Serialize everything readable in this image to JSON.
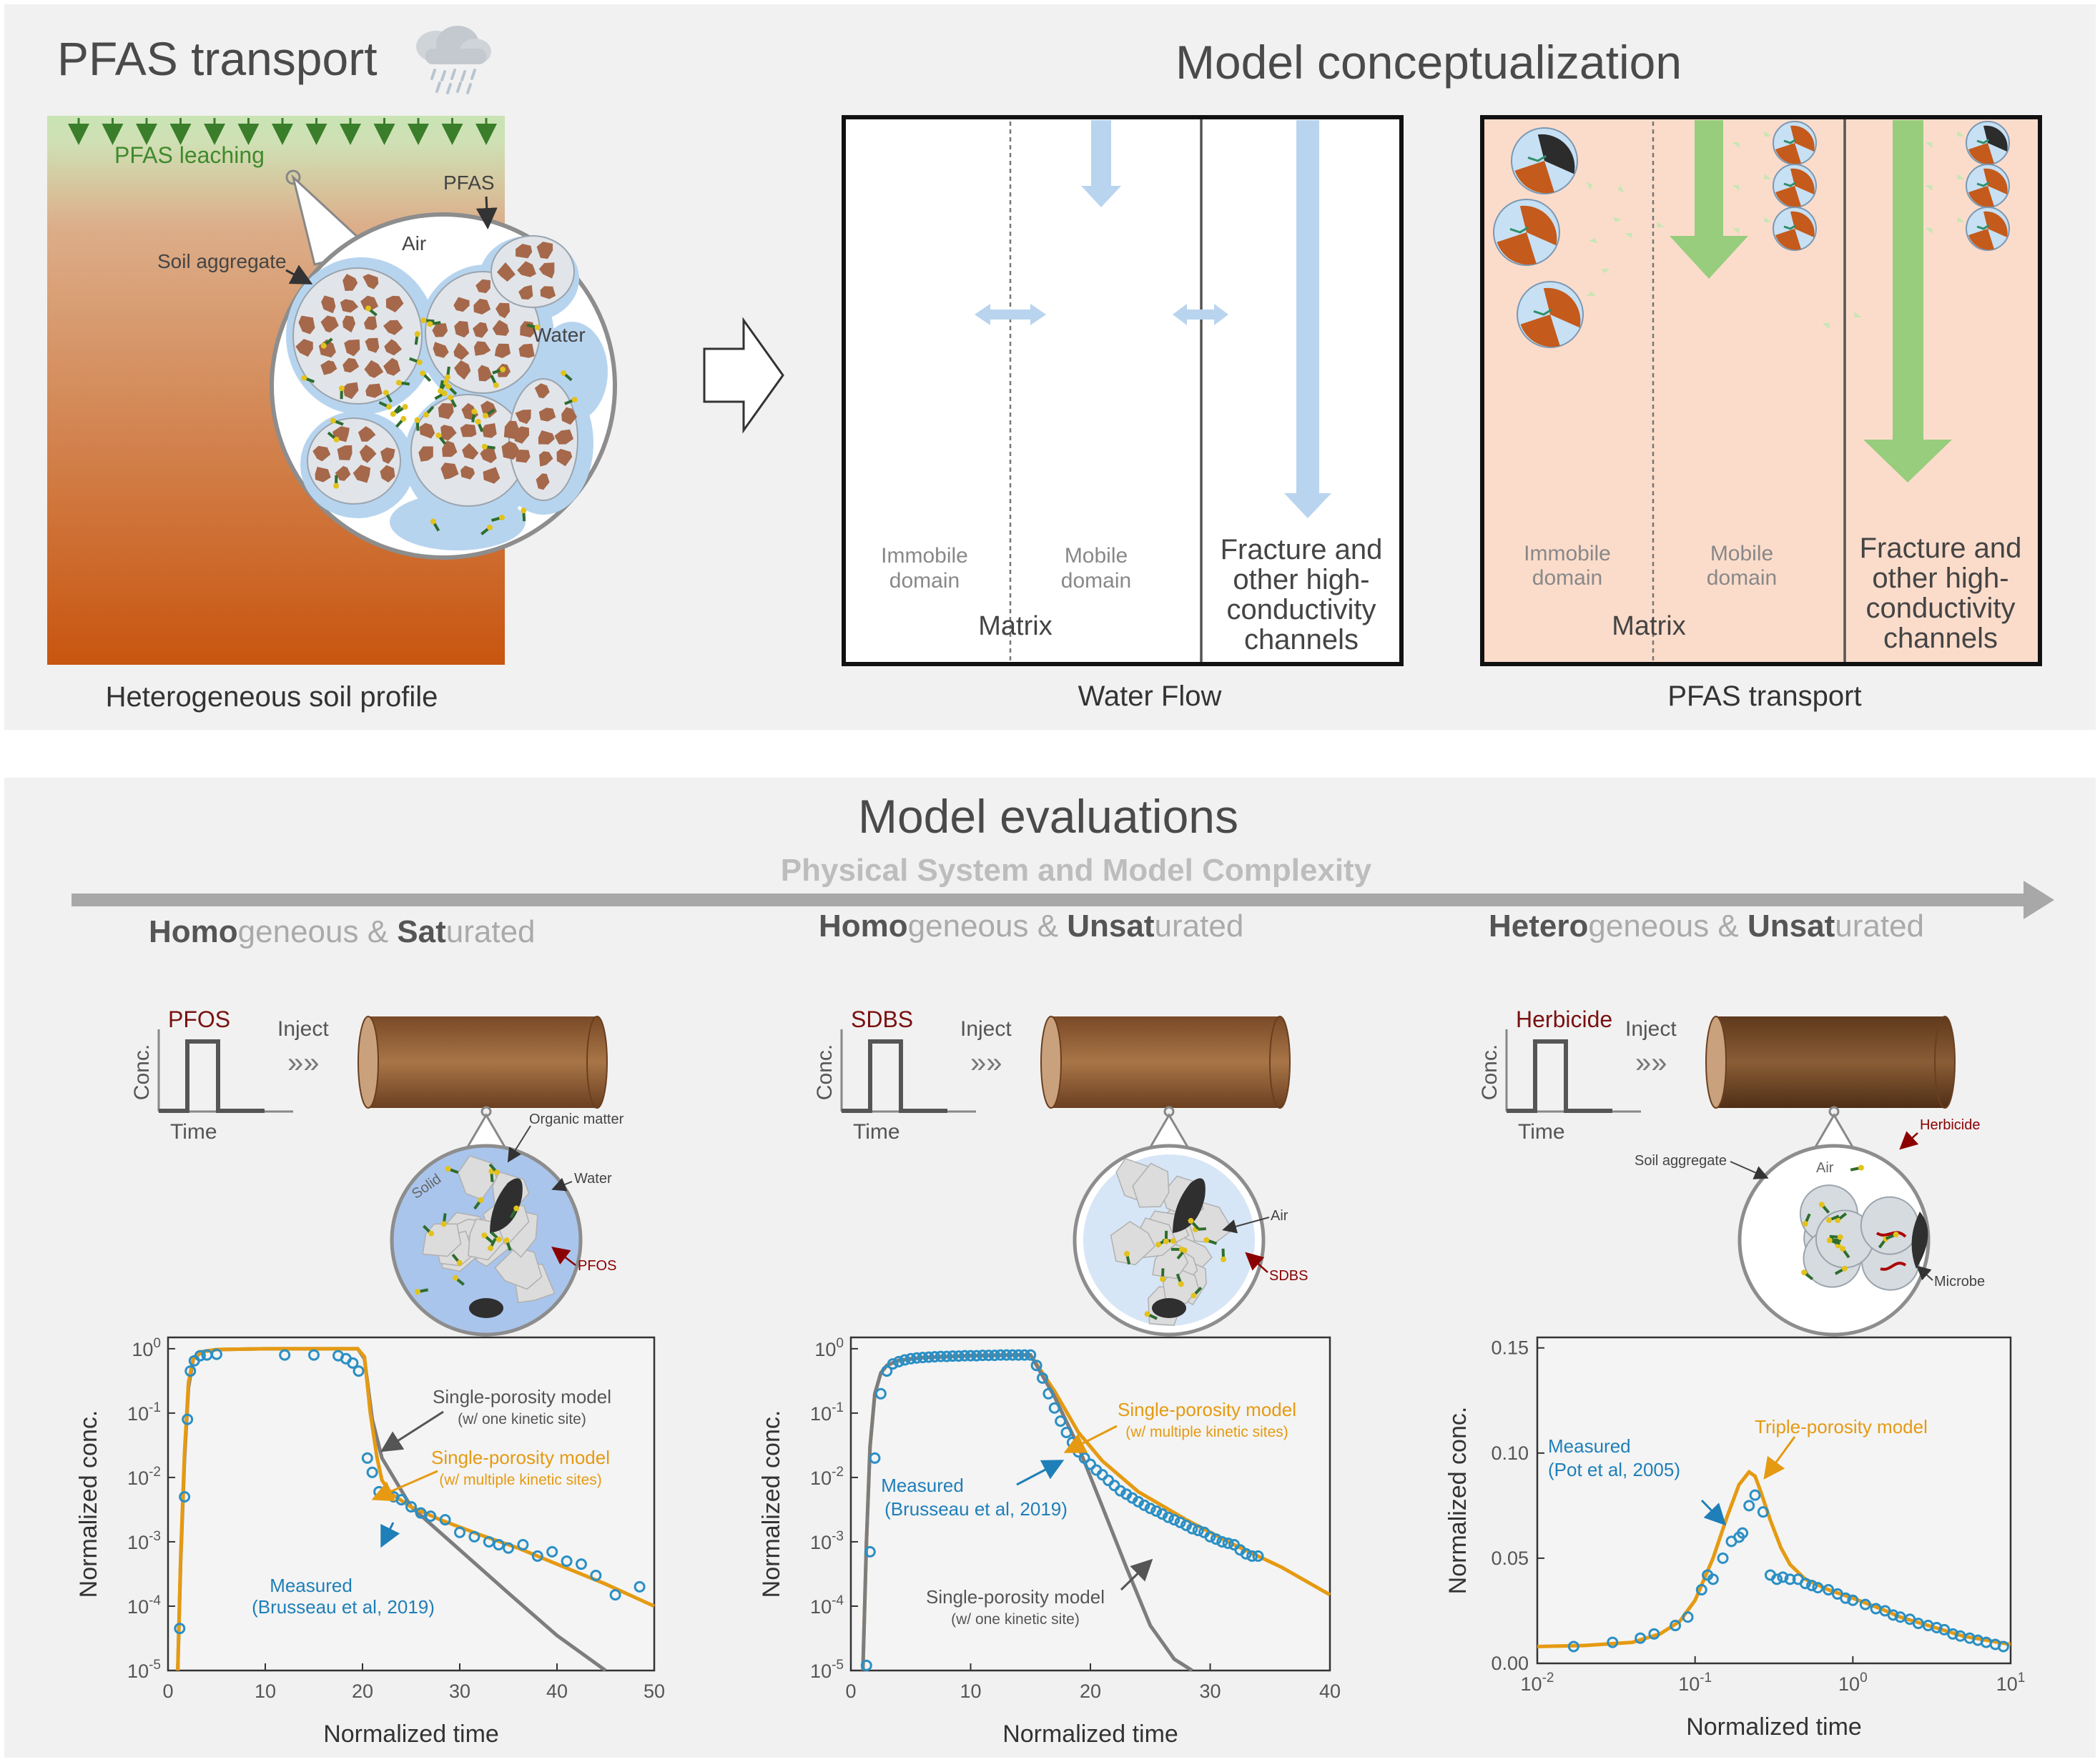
{
  "top": {
    "title": "PFAS transport",
    "model_title": "Model conceptualization",
    "soil_profile": {
      "leaching_label": "PFAS leaching",
      "pfas_label": "PFAS",
      "air_label": "Air",
      "water_label": "Water",
      "aggregate_label": "Soil aggregate",
      "caption": "Heterogeneous soil profile"
    },
    "water_flow_box": {
      "immobile": [
        "Immobile",
        "domain"
      ],
      "mobile": [
        "Mobile",
        "domain"
      ],
      "matrix": "Matrix",
      "fracture": [
        "Fracture and",
        "other high-",
        "conductivity",
        "channels"
      ],
      "caption": "Water Flow"
    },
    "pfas_box": {
      "immobile": [
        "Immobile",
        "domain"
      ],
      "mobile": [
        "Mobile",
        "domain"
      ],
      "matrix": "Matrix",
      "fracture": [
        "Fracture and",
        "other high-",
        "conductivity",
        "channels"
      ],
      "caption": "PFAS transport"
    },
    "colors": {
      "soil_top": "#d9a27a",
      "soil_bottom": "#c8550f",
      "green_band": "#c9e4b4",
      "water": "#b7d4ef",
      "aggregate": "#a5684a",
      "pfas_box_bg": "#fbdccb",
      "flow_arrow": "#b9d4ee",
      "pfas_arrow": "#97cd7c"
    }
  },
  "bottom": {
    "title": "Model evaluations",
    "axis_arrow_label": "Physical System and Model Complexity",
    "col1": {
      "heading": [
        [
          "Homo",
          "bold"
        ],
        [
          "geneous & ",
          "light"
        ],
        [
          "Sat",
          "bold"
        ],
        [
          "urated",
          "light"
        ]
      ],
      "pulse_label": "PFOS",
      "inject": "Inject",
      "conc": "Conc.",
      "time": "Time",
      "labels": {
        "organic": "Organic matter",
        "solid": "Solid",
        "water": "Water",
        "pfos": "PFOS"
      }
    },
    "col2": {
      "heading": [
        [
          "Homo",
          "bold"
        ],
        [
          "geneous & ",
          "light"
        ],
        [
          "Unsat",
          "bold"
        ],
        [
          "urated",
          "light"
        ]
      ],
      "pulse_label": "SDBS",
      "inject": "Inject",
      "conc": "Conc.",
      "time": "Time",
      "labels": {
        "air": "Air",
        "sdbs": "SDBS"
      }
    },
    "col3": {
      "heading": [
        [
          "Hetero",
          "bold"
        ],
        [
          "geneous & ",
          "light"
        ],
        [
          "Unsat",
          "bold"
        ],
        [
          "urated",
          "light"
        ]
      ],
      "pulse_label": "Herbicide",
      "inject": "Inject",
      "conc": "Conc.",
      "time": "Time",
      "labels": {
        "air": "Air",
        "herbicide": "Herbicide",
        "aggregate": "Soil aggregate",
        "microbe": "Microbe"
      }
    }
  },
  "chart_data": [
    {
      "type": "scatter",
      "xlabel": "Normalized time",
      "ylabel": "Normalized conc.",
      "xlim": [
        0,
        50
      ],
      "ylim": [
        1e-05,
        1.5
      ],
      "yscale": "log",
      "xticks": [
        "0",
        "10",
        "20",
        "30",
        "40",
        "50"
      ],
      "yticks": [
        "10^0",
        "10^-1",
        "10^-2",
        "10^-3",
        "10^-4",
        "10^-5"
      ],
      "annotations": [
        {
          "lines": [
            "Single-porosity model",
            "(w/ one kinetic site)"
          ],
          "color": "#555555"
        },
        {
          "lines": [
            "Single-porosity model",
            "(w/ multiple kinetic sites)"
          ],
          "color": "#e59a12"
        },
        {
          "lines": [
            "Measured",
            "(Brusseau et al, 2019)"
          ],
          "color": "#1f7fb8"
        }
      ],
      "series": [
        {
          "name": "Measured",
          "kind": "points",
          "color": "#2b8fc4",
          "x": [
            1.2,
            1.7,
            2.0,
            2.3,
            2.7,
            3.3,
            4.0,
            5.0,
            12,
            15,
            17.5,
            18.3,
            19,
            19.6,
            20.5,
            21,
            21.7,
            22.4,
            23.2,
            24,
            25,
            26,
            27,
            28.5,
            30,
            31.5,
            33,
            34,
            35,
            36.5,
            38,
            39.5,
            41,
            42.5,
            44,
            46,
            48.5
          ],
          "y": [
            4.5e-05,
            0.005,
            0.08,
            0.45,
            0.65,
            0.78,
            0.8,
            0.82,
            0.8,
            0.8,
            0.78,
            0.7,
            0.6,
            0.45,
            0.02,
            0.012,
            0.006,
            0.0055,
            0.005,
            0.0045,
            0.0035,
            0.0028,
            0.0025,
            0.0022,
            0.0014,
            0.0012,
            0.001,
            0.0009,
            0.0008,
            0.0009,
            0.0006,
            0.0007,
            0.0005,
            0.00045,
            0.0003,
            0.00015,
            0.0002
          ]
        },
        {
          "name": "Single-porosity model (w/ one kinetic site)",
          "kind": "line",
          "color": "#7d7d7d",
          "x": [
            1.0,
            1.3,
            1.7,
            2.1,
            2.6,
            3.5,
            5,
            10,
            15,
            19.5,
            20.2,
            21,
            22,
            25,
            30,
            35,
            40,
            45
          ],
          "y": [
            1e-05,
            0.0005,
            0.02,
            0.25,
            0.7,
            0.9,
            0.97,
            1.0,
            1.0,
            1.0,
            0.7,
            0.08,
            0.02,
            0.0035,
            0.00075,
            0.00016,
            3.5e-05,
            1e-05
          ]
        },
        {
          "name": "Single-porosity model (w/ multiple kinetic sites)",
          "kind": "line",
          "color": "#e59a12",
          "x": [
            1.0,
            1.3,
            1.7,
            2.1,
            2.6,
            3.5,
            5,
            10,
            15,
            19.5,
            20.2,
            20.8,
            21.5,
            22,
            23,
            25,
            28,
            32,
            36,
            40,
            45,
            50
          ],
          "y": [
            1e-05,
            0.0006,
            0.025,
            0.3,
            0.72,
            0.9,
            0.97,
            1.0,
            1.0,
            1.0,
            0.75,
            0.1,
            0.02,
            0.009,
            0.0055,
            0.0035,
            0.0022,
            0.0013,
            0.0008,
            0.00045,
            0.00022,
            0.0001
          ]
        }
      ]
    },
    {
      "type": "scatter",
      "xlabel": "Normalized time",
      "ylabel": "Normalized conc.",
      "xlim": [
        0,
        40
      ],
      "ylim": [
        1e-05,
        1.5
      ],
      "yscale": "log",
      "xticks": [
        "0",
        "10",
        "20",
        "30",
        "40"
      ],
      "yticks": [
        "10^0",
        "10^-1",
        "10^-2",
        "10^-3",
        "10^-4",
        "10^-5"
      ],
      "annotations": [
        {
          "lines": [
            "Single-porosity model",
            "(w/ multiple kinetic sites)"
          ],
          "color": "#e59a12"
        },
        {
          "lines": [
            "Measured",
            "(Brusseau et al, 2019)"
          ],
          "color": "#1f7fb8"
        },
        {
          "lines": [
            "Single-porosity model",
            "(w/ one kinetic site)"
          ],
          "color": "#555555"
        }
      ],
      "series": [
        {
          "name": "Measured",
          "kind": "points",
          "color": "#2b8fc4",
          "x": [
            1.3,
            1.6,
            2.0,
            2.5,
            3.0,
            3.5,
            4.0,
            4.5,
            5.0,
            5.5,
            6.0,
            6.5,
            7.0,
            7.5,
            8.0,
            8.5,
            9.0,
            9.5,
            10.0,
            10.5,
            11.0,
            11.5,
            12.0,
            12.5,
            13.0,
            13.5,
            14.0,
            14.5,
            15.0,
            15.5,
            16.0,
            16.5,
            17.0,
            17.5,
            18.0,
            18.5,
            19.0,
            19.5,
            20.0,
            20.5,
            21.0,
            21.5,
            22.0,
            22.5,
            23.0,
            23.5,
            24.0,
            24.5,
            25.0,
            25.5,
            26.0,
            26.5,
            27.0,
            27.5,
            28.0,
            28.5,
            29.0,
            29.5,
            30.0,
            30.5,
            31.0,
            31.5,
            32.0,
            32.5,
            33.0,
            33.5,
            34.0
          ],
          "y": [
            1.2e-05,
            0.0007,
            0.02,
            0.2,
            0.45,
            0.58,
            0.63,
            0.67,
            0.7,
            0.72,
            0.73,
            0.74,
            0.75,
            0.76,
            0.76,
            0.77,
            0.77,
            0.78,
            0.78,
            0.78,
            0.79,
            0.79,
            0.79,
            0.8,
            0.8,
            0.8,
            0.8,
            0.8,
            0.8,
            0.55,
            0.35,
            0.2,
            0.12,
            0.075,
            0.05,
            0.035,
            0.025,
            0.02,
            0.016,
            0.013,
            0.011,
            0.009,
            0.0075,
            0.0062,
            0.0055,
            0.0048,
            0.0042,
            0.0037,
            0.0033,
            0.003,
            0.0027,
            0.0024,
            0.0022,
            0.002,
            0.0018,
            0.0016,
            0.0015,
            0.0014,
            0.0012,
            0.0011,
            0.001,
            0.00095,
            0.0009,
            0.00075,
            0.00065,
            0.0006,
            0.0006
          ]
        },
        {
          "name": "Single-porosity model (w/ multiple kinetic sites)",
          "kind": "line",
          "color": "#e59a12",
          "x": [
            1.0,
            1.3,
            1.6,
            2.0,
            2.5,
            3.0,
            4.0,
            6.0,
            10.0,
            14.0,
            15.0,
            17.0,
            19.0,
            21.0,
            24.0,
            28.0,
            32.0,
            36.0,
            40.0
          ],
          "y": [
            1e-05,
            0.001,
            0.03,
            0.2,
            0.42,
            0.55,
            0.66,
            0.73,
            0.78,
            0.8,
            0.8,
            0.22,
            0.05,
            0.018,
            0.006,
            0.0022,
            0.0009,
            0.0004,
            0.00015
          ]
        },
        {
          "name": "Single-porosity model (w/ one kinetic site)",
          "kind": "line",
          "color": "#7d7d7d",
          "x": [
            1.0,
            1.3,
            1.6,
            2.0,
            2.5,
            3.0,
            4.0,
            6.0,
            10.0,
            14.0,
            15.0,
            17.0,
            19.0,
            21.0,
            23.0,
            25.0,
            27.0,
            28.5
          ],
          "y": [
            1e-05,
            0.001,
            0.03,
            0.2,
            0.42,
            0.55,
            0.66,
            0.73,
            0.78,
            0.8,
            0.8,
            0.18,
            0.03,
            0.0035,
            0.0004,
            5e-05,
            1.5e-05,
            1e-05
          ]
        }
      ]
    },
    {
      "type": "scatter",
      "xlabel": "Normalized time",
      "ylabel": "Normalized conc.",
      "xscale": "log",
      "xlim": [
        0.01,
        10
      ],
      "ylim": [
        0,
        0.155
      ],
      "xticks": [
        "10^-2",
        "10^-1",
        "10^0",
        "10^1"
      ],
      "yticks": [
        "0.00",
        "0.05",
        "0.10",
        "0.15"
      ],
      "annotations": [
        {
          "lines": [
            "Measured",
            "(Pot et al, 2005)"
          ],
          "color": "#1f7fb8"
        },
        {
          "lines": [
            "Triple-porosity model"
          ],
          "color": "#e59a12"
        }
      ],
      "series": [
        {
          "name": "Measured",
          "kind": "points",
          "color": "#2b8fc4",
          "x": [
            0.017,
            0.03,
            0.045,
            0.055,
            0.075,
            0.09,
            0.11,
            0.12,
            0.13,
            0.15,
            0.17,
            0.19,
            0.2,
            0.22,
            0.24,
            0.27,
            0.3,
            0.33,
            0.36,
            0.4,
            0.45,
            0.5,
            0.55,
            0.6,
            0.7,
            0.8,
            0.9,
            1.0,
            1.2,
            1.4,
            1.6,
            1.8,
            2.0,
            2.3,
            2.6,
            3.0,
            3.4,
            3.8,
            4.3,
            4.8,
            5.5,
            6.2,
            7.0,
            8.0,
            9.0
          ],
          "y": [
            0.008,
            0.01,
            0.012,
            0.014,
            0.018,
            0.022,
            0.035,
            0.042,
            0.04,
            0.05,
            0.058,
            0.06,
            0.062,
            0.075,
            0.08,
            0.072,
            0.042,
            0.04,
            0.041,
            0.04,
            0.04,
            0.038,
            0.037,
            0.036,
            0.035,
            0.033,
            0.031,
            0.03,
            0.028,
            0.026,
            0.025,
            0.023,
            0.022,
            0.021,
            0.019,
            0.018,
            0.017,
            0.016,
            0.014,
            0.013,
            0.012,
            0.011,
            0.01,
            0.009,
            0.008
          ]
        },
        {
          "name": "Triple-porosity model",
          "kind": "line",
          "color": "#e59a12",
          "x": [
            0.01,
            0.02,
            0.04,
            0.06,
            0.08,
            0.1,
            0.13,
            0.16,
            0.19,
            0.22,
            0.24,
            0.26,
            0.3,
            0.35,
            0.4,
            0.5,
            0.7,
            1.0,
            1.5,
            2.0,
            3.0,
            5.0,
            7.0,
            10.0
          ],
          "y": [
            0.008,
            0.0085,
            0.01,
            0.014,
            0.02,
            0.03,
            0.05,
            0.07,
            0.085,
            0.091,
            0.089,
            0.082,
            0.068,
            0.055,
            0.047,
            0.04,
            0.035,
            0.031,
            0.026,
            0.022,
            0.018,
            0.013,
            0.011,
            0.009
          ]
        }
      ]
    }
  ]
}
